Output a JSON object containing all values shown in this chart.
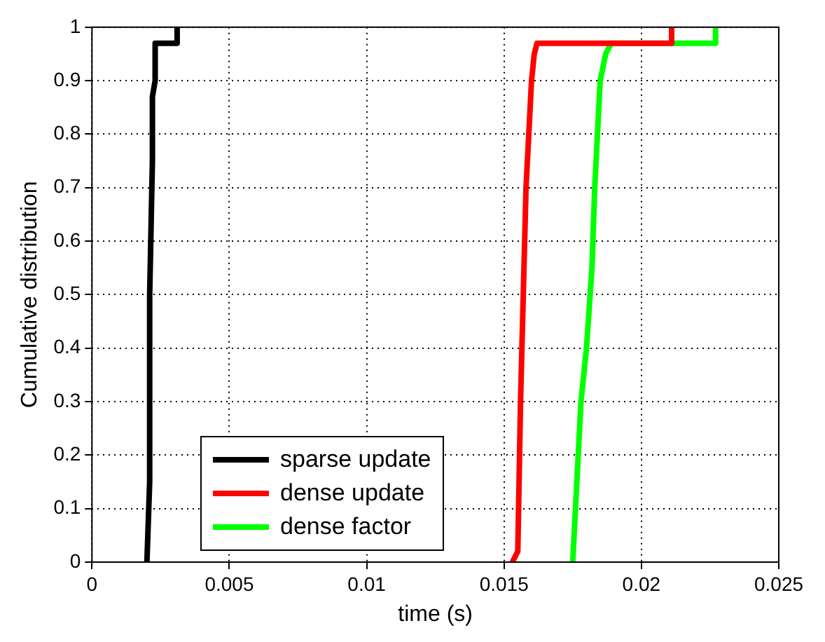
{
  "chart_data": {
    "type": "line",
    "xlabel": "time (s)",
    "ylabel": "Cumulative distribution",
    "xlim": [
      0,
      0.025
    ],
    "ylim": [
      0,
      1
    ],
    "xticks": [
      0,
      0.005,
      0.01,
      0.015,
      0.02,
      0.025
    ],
    "yticks": [
      0,
      0.1,
      0.2,
      0.3,
      0.4,
      0.5,
      0.6,
      0.7,
      0.8,
      0.9,
      1
    ],
    "grid": true,
    "legend": "bottom left",
    "marker": "none",
    "line_style": "solid",
    "series": [
      {
        "name": "sparse update",
        "color": "#000000",
        "x": [
          0.002,
          0.0021,
          0.0021,
          0.0022,
          0.0022,
          0.0023,
          0.0023,
          0.0031,
          0.0031
        ],
        "values": [
          0,
          0.15,
          0.5,
          0.75,
          0.87,
          0.9,
          0.97,
          0.97,
          1
        ]
      },
      {
        "name": "dense update",
        "color": "#ff0000",
        "x": [
          0.0153,
          0.0155,
          0.0156,
          0.0157,
          0.0158,
          0.0159,
          0.016,
          0.0161,
          0.0162,
          0.0211,
          0.0211
        ],
        "values": [
          0,
          0.02,
          0.3,
          0.5,
          0.7,
          0.8,
          0.9,
          0.95,
          0.97,
          0.97,
          1
        ]
      },
      {
        "name": "dense factor",
        "color": "#00ff00",
        "x": [
          0.0175,
          0.0176,
          0.0178,
          0.018,
          0.0182,
          0.0183,
          0.0184,
          0.0185,
          0.0187,
          0.0189,
          0.0227,
          0.0227
        ],
        "values": [
          0,
          0.1,
          0.3,
          0.4,
          0.55,
          0.7,
          0.8,
          0.9,
          0.95,
          0.97,
          0.97,
          1
        ]
      }
    ]
  }
}
